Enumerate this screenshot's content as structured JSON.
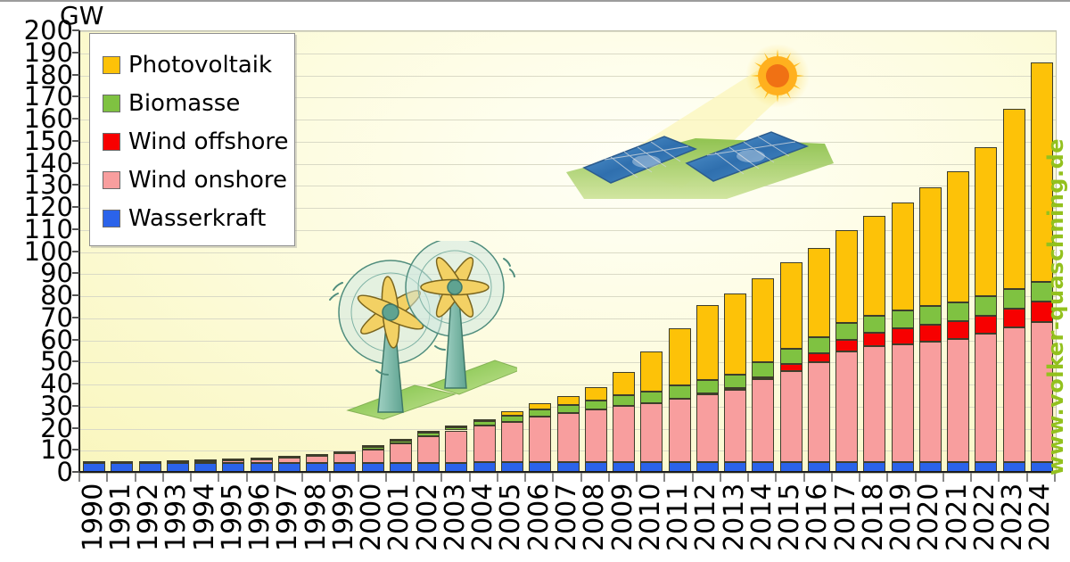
{
  "axes": {
    "unit_label": "GW"
  },
  "watermark": {
    "text": "www.volker-quaschning.de",
    "color": "#93c11e"
  },
  "legend": {
    "items": [
      {
        "label": "Photovoltaik",
        "color": "#fdc208"
      },
      {
        "label": "Biomasse",
        "color": "#7fc241"
      },
      {
        "label": "Wind offshore",
        "color": "#f70000"
      },
      {
        "label": "Wind onshore",
        "color": "#f89e9e"
      },
      {
        "label": "Wasserkraft",
        "color": "#2b63ea"
      }
    ]
  },
  "chart_data": {
    "type": "bar",
    "stacked": true,
    "title": "",
    "ylabel": "GW",
    "xlabel": "",
    "ylim": [
      0,
      200
    ],
    "ytick_step": 10,
    "yticks": [
      0,
      10,
      20,
      30,
      40,
      50,
      60,
      70,
      80,
      90,
      100,
      110,
      120,
      130,
      140,
      150,
      160,
      170,
      180,
      190,
      200
    ],
    "grid": "horizontal",
    "legend_position": "upper-left",
    "categories": [
      1990,
      1991,
      1992,
      1993,
      1994,
      1995,
      1996,
      1997,
      1998,
      1999,
      2000,
      2001,
      2002,
      2003,
      2004,
      2005,
      2006,
      2007,
      2008,
      2009,
      2010,
      2011,
      2012,
      2013,
      2014,
      2015,
      2016,
      2017,
      2018,
      2019,
      2020,
      2021,
      2022,
      2023,
      2024
    ],
    "series": [
      {
        "name": "Wasserkraft",
        "color": "#2b63ea",
        "values": [
          4.4,
          4.4,
          4.4,
          4.5,
          4.5,
          4.5,
          4.6,
          4.6,
          4.6,
          4.6,
          4.6,
          4.6,
          4.6,
          4.6,
          4.7,
          4.7,
          4.7,
          4.7,
          4.7,
          4.8,
          4.8,
          4.8,
          4.8,
          4.8,
          4.8,
          4.8,
          4.8,
          4.8,
          4.8,
          4.8,
          4.9,
          4.9,
          4.9,
          4.9,
          4.9
        ]
      },
      {
        "name": "Wind onshore",
        "color": "#f89e9e",
        "values": [
          0.1,
          0.1,
          0.2,
          0.3,
          0.6,
          1.1,
          1.5,
          2.1,
          2.9,
          4.4,
          6.1,
          8.7,
          12.0,
          14.6,
          16.6,
          18.4,
          20.6,
          22.2,
          23.9,
          25.7,
          26.8,
          28.6,
          30.7,
          32.9,
          37.6,
          41.2,
          45.3,
          50.2,
          52.4,
          53.2,
          54.4,
          55.9,
          58.1,
          61.0,
          63.3
        ]
      },
      {
        "name": "Wind offshore",
        "color": "#f70000",
        "values": [
          0,
          0,
          0,
          0,
          0,
          0,
          0,
          0,
          0,
          0,
          0,
          0,
          0,
          0,
          0,
          0,
          0,
          0,
          0,
          0,
          0.1,
          0.2,
          0.3,
          0.5,
          1.0,
          3.3,
          4.2,
          5.4,
          6.4,
          7.5,
          7.7,
          7.8,
          8.1,
          8.3,
          9.2
        ]
      },
      {
        "name": "Biomasse",
        "color": "#7fc241",
        "values": [
          0.1,
          0.1,
          0.1,
          0.2,
          0.2,
          0.3,
          0.3,
          0.4,
          0.5,
          0.7,
          1.0,
          1.2,
          1.4,
          1.6,
          2.0,
          2.7,
          3.2,
          3.7,
          4.1,
          4.6,
          5.2,
          5.9,
          6.2,
          6.4,
          6.6,
          6.8,
          7.0,
          7.3,
          7.7,
          8.2,
          8.5,
          8.7,
          8.9,
          9.0,
          9.1
        ]
      },
      {
        "name": "Photovoltaik",
        "color": "#fdc208",
        "values": [
          0,
          0,
          0,
          0,
          0,
          0,
          0,
          0,
          0,
          0,
          0.1,
          0.2,
          0.3,
          0.4,
          1.1,
          2.1,
          2.9,
          4.2,
          6.1,
          10.6,
          18.0,
          25.9,
          34.1,
          36.7,
          37.9,
          39.2,
          40.7,
          42.3,
          45.2,
          48.9,
          53.7,
          59.4,
          67.5,
          81.7,
          99.5
        ]
      }
    ]
  }
}
